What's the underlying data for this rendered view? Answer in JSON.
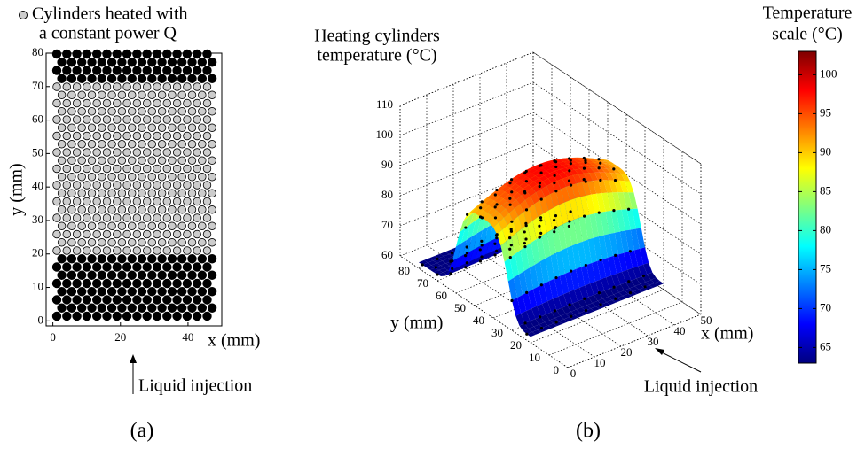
{
  "chart_data": [
    {
      "type": "cylinders",
      "legend": [
        "Cylinders heated with",
        "a constant power Q"
      ],
      "xlabel": "x (mm)",
      "ylabel": "y (mm)",
      "xlim": [
        -2,
        50
      ],
      "ylim": [
        -1.5,
        80
      ],
      "xticks": [
        0,
        20,
        40
      ],
      "yticks": [
        0,
        10,
        20,
        30,
        40,
        50,
        60,
        70,
        80
      ],
      "annotation": "Liquid injection",
      "caption": "(a)"
    },
    {
      "type": "surface",
      "title": [
        "Heating cylinders",
        "temperature (°C)"
      ],
      "xlabel": "x (mm)",
      "ylabel": "y (mm)",
      "xlim": [
        0,
        50
      ],
      "ylim": [
        0,
        90
      ],
      "zlim": [
        60,
        110
      ],
      "xticks": [
        0,
        10,
        20,
        30,
        40,
        50
      ],
      "yticks": [
        0,
        10,
        20,
        30,
        40,
        50,
        60,
        70,
        80
      ],
      "zticks": [
        60,
        70,
        80,
        90,
        100,
        110
      ],
      "annotation": "Liquid injection",
      "caption": "(b)",
      "colorbar": {
        "title": [
          "Temperature",
          "scale (°C)"
        ],
        "lim": [
          63,
          103
        ],
        "ticks": [
          65,
          70,
          75,
          80,
          85,
          90,
          95,
          100
        ]
      }
    }
  ]
}
